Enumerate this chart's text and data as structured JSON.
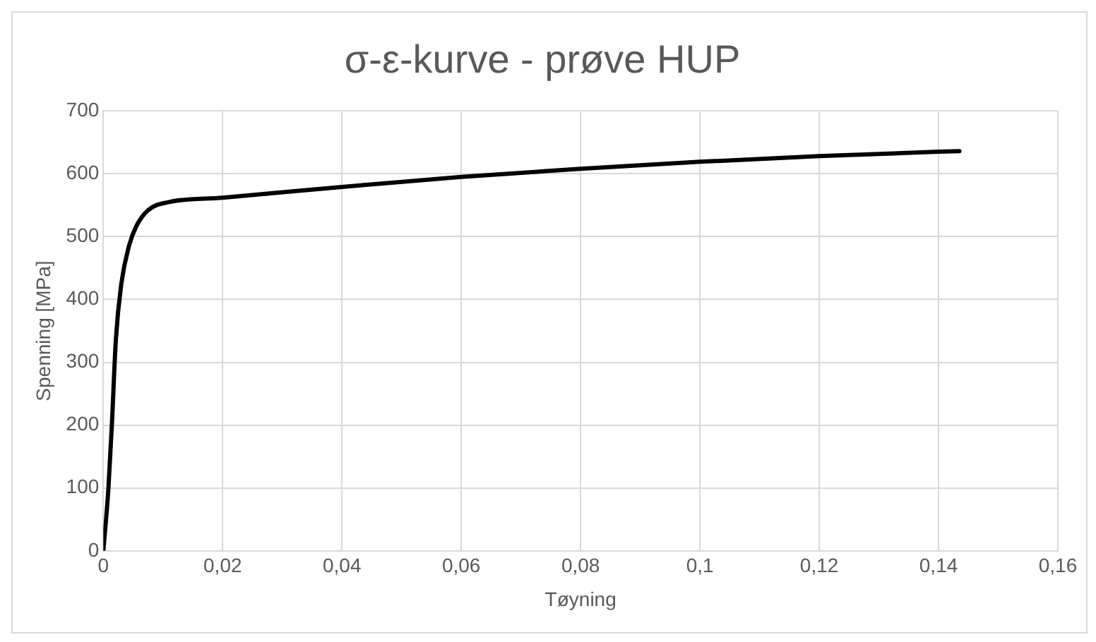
{
  "chart_data": {
    "type": "line",
    "title": "σ-ε-kurve - prøve HUP",
    "xlabel": "Tøyning",
    "ylabel": "Spenning [MPa]",
    "x": [
      0,
      0.00085,
      0.00145,
      0.0021,
      0.003,
      0.0043,
      0.0055,
      0.0075,
      0.011,
      0.02,
      0.04,
      0.06,
      0.08,
      0.1,
      0.12,
      0.14,
      0.1435
    ],
    "series": [
      {
        "color": "#000000",
        "values": [
          0,
          99,
          204,
          336,
          424,
          485,
          516,
          542,
          555,
          562,
          579,
          595,
          608,
          619,
          628,
          635,
          636
        ]
      }
    ],
    "xlim": [
      0,
      0.16
    ],
    "xticks": [
      0,
      {
        "value": 0.02,
        "label": "0,02"
      },
      {
        "value": 0.04,
        "label": "0,04"
      },
      {
        "value": 0.06,
        "label": "0,06"
      },
      {
        "value": 0.08,
        "label": "0,08"
      },
      {
        "value": 0.1,
        "label": "0,1"
      },
      {
        "value": 0.12,
        "label": "0,12"
      },
      {
        "value": 0.14,
        "label": "0,14"
      },
      {
        "value": 0.16,
        "label": "0,16"
      }
    ],
    "ylim": [
      0,
      700
    ],
    "yticks": [
      0,
      100,
      200,
      300,
      400,
      500,
      600,
      700
    ],
    "grid": true,
    "legend": false,
    "marker": "none",
    "line_style": "solid"
  }
}
